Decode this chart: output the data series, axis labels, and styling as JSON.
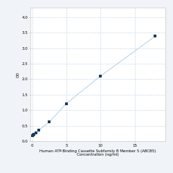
{
  "x_data": [
    0,
    0.0625,
    0.125,
    0.25,
    0.5,
    1,
    2.5,
    5,
    10,
    18
  ],
  "y_data": [
    0.178,
    0.19,
    0.205,
    0.225,
    0.27,
    0.37,
    0.62,
    1.22,
    2.1,
    3.38
  ],
  "line_color": "#b8d4e8",
  "marker_color": "#1a3a5c",
  "marker_size": 9,
  "xlabel_line1": "Human ATP-Binding Cassette Subfamily B Member 5 (ABCB5)",
  "xlabel_line2": "Concentration (ng/ml)",
  "ylabel": "OD",
  "xlim": [
    -0.3,
    19.5
  ],
  "ylim": [
    0,
    4.3
  ],
  "yticks": [
    0,
    0.5,
    1.0,
    1.5,
    2.0,
    2.5,
    3.0,
    3.5,
    4.0
  ],
  "xticks": [
    0,
    5,
    10,
    15
  ],
  "xtick_labels": [
    "0",
    "5",
    "10",
    "15"
  ],
  "grid_color": "#c8d8e8",
  "background_color": "#f5f8fa",
  "font_size_label": 4.0,
  "font_size_tick": 4.0,
  "fig_bg": "#f0f4f8"
}
